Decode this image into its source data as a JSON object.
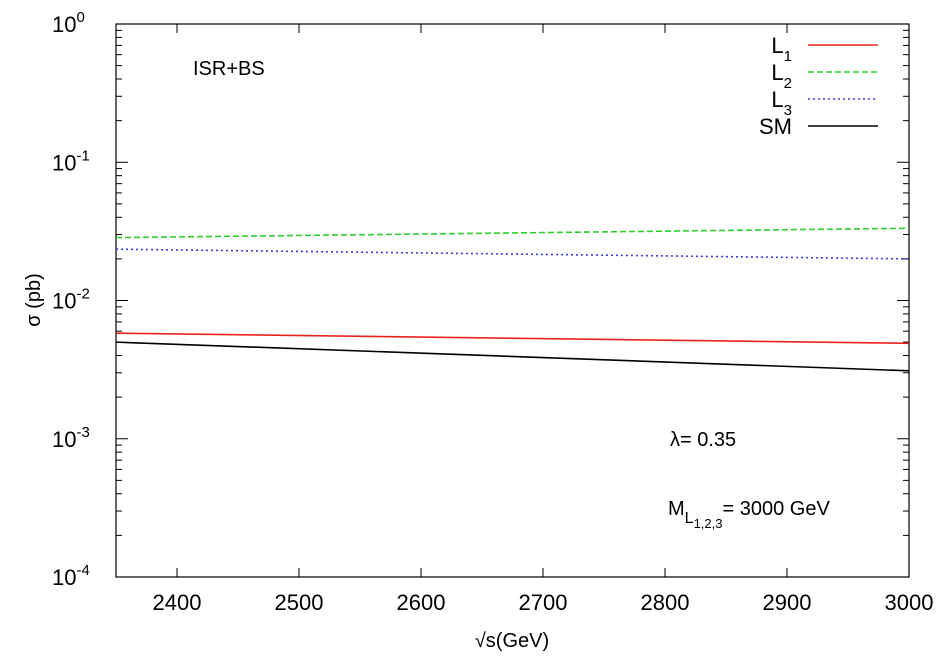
{
  "chart_data": {
    "type": "line",
    "xlabel": "√s(GeV)",
    "ylabel": "σ (pb)",
    "xlim": [
      2350,
      3000
    ],
    "ylim": [
      0.0001,
      1
    ],
    "yscale": "log",
    "x_ticks": [
      2400,
      2500,
      2600,
      2700,
      2800,
      2900,
      3000
    ],
    "y_ticks": [
      {
        "base": "10",
        "exp": "-4",
        "value": 0.0001
      },
      {
        "base": "10",
        "exp": "-3",
        "value": 0.001
      },
      {
        "base": "10",
        "exp": "-2",
        "value": 0.01
      },
      {
        "base": "10",
        "exp": "-1",
        "value": 0.1
      },
      {
        "base": "10",
        "exp": "0",
        "value": 1
      }
    ],
    "legend_position": "top-right",
    "grid": false,
    "series": [
      {
        "name": "L",
        "sub": "1",
        "color": "#e8231e",
        "dash": "solid",
        "x": [
          2350,
          3000
        ],
        "y": [
          0.0058,
          0.0049
        ]
      },
      {
        "name": "L",
        "sub": "2",
        "color": "#2fcf2f",
        "dash": "6,3",
        "x": [
          2350,
          3000
        ],
        "y": [
          0.0285,
          0.0333
        ]
      },
      {
        "name": "L",
        "sub": "3",
        "color": "#3a3ae0",
        "dash": "2,3",
        "x": [
          2350,
          3000
        ],
        "y": [
          0.0235,
          0.02
        ]
      },
      {
        "name": "SM",
        "sub": "",
        "color": "#000000",
        "dash": "solid",
        "x": [
          2350,
          3000
        ],
        "y": [
          0.005,
          0.0031
        ]
      }
    ],
    "annotations": {
      "isr": "ISR+BS",
      "lambda": "λ= 0.35",
      "mass_main": "M",
      "mass_sub": "L",
      "mass_subsub": "1,2,3",
      "mass_value": "= 3000 GeV"
    }
  }
}
